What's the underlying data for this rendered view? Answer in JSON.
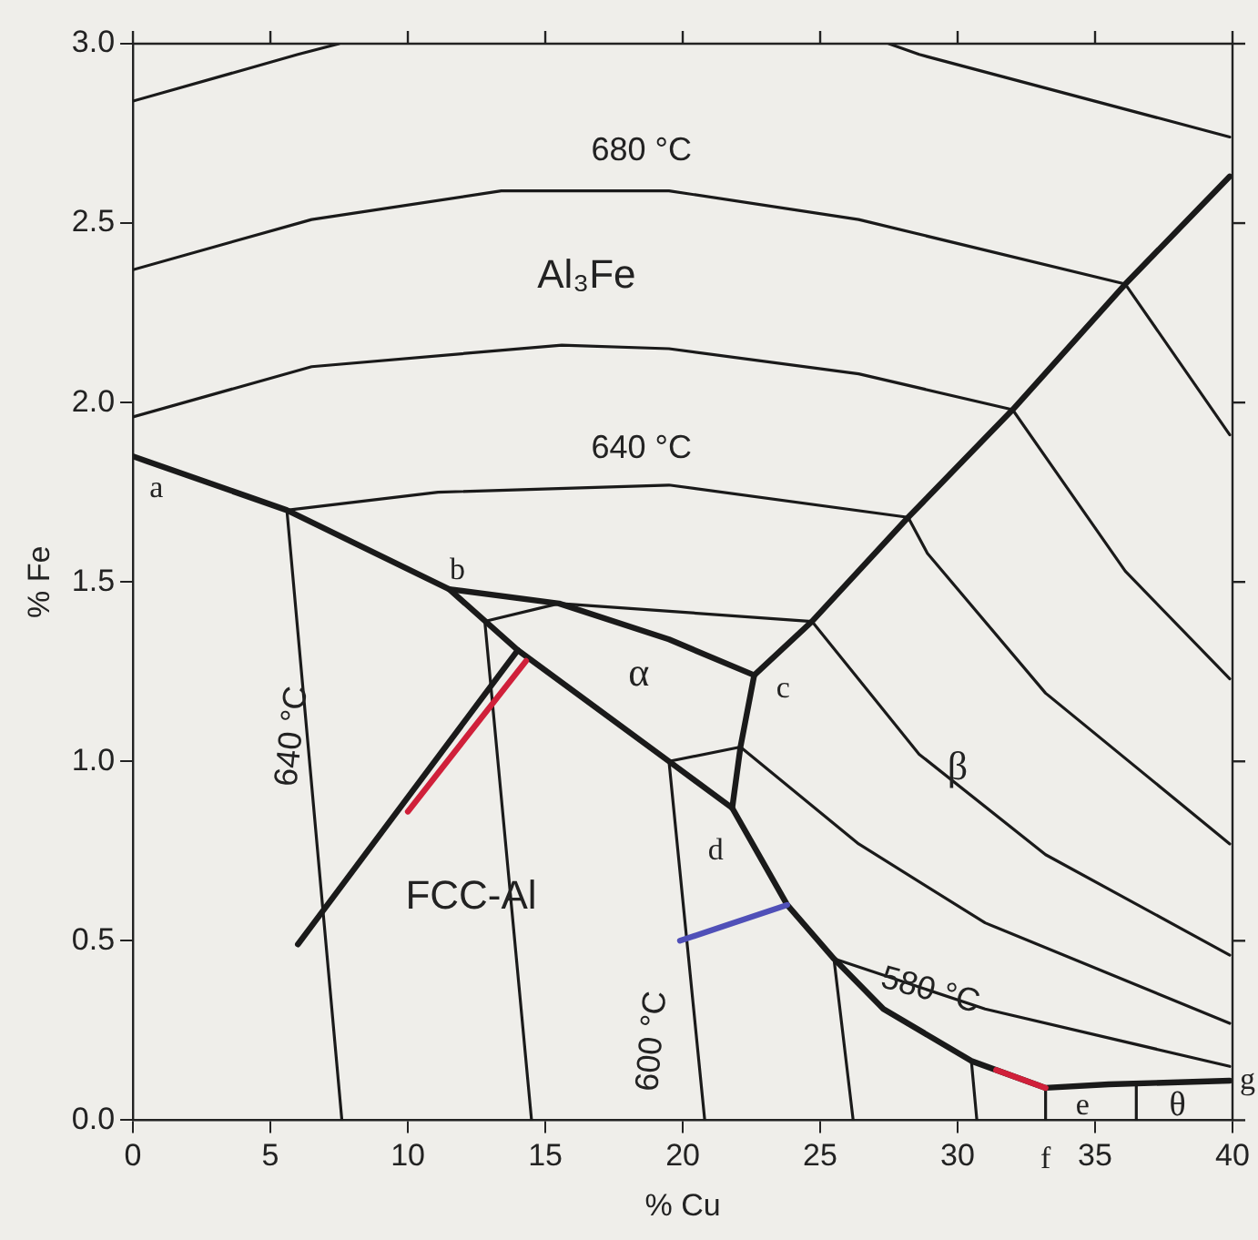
{
  "chart_data": {
    "type": "line",
    "xlabel": "% Cu",
    "ylabel": "% Fe",
    "xlim": [
      0,
      40
    ],
    "ylim": [
      0,
      3
    ],
    "xticks": [
      0,
      5,
      10,
      15,
      20,
      25,
      30,
      35,
      40
    ],
    "yticks": [
      {
        "value": 0,
        "label": "0.0"
      },
      {
        "value": 0.5,
        "label": "0.5"
      },
      {
        "value": 1,
        "label": "1.0"
      },
      {
        "value": 1.5,
        "label": "1.5"
      },
      {
        "value": 2,
        "label": "2.0"
      },
      {
        "value": 2.5,
        "label": "2.5"
      },
      {
        "value": 3,
        "label": "3.0"
      }
    ],
    "grid": false,
    "legend": false,
    "marker": "none",
    "line_style": "solid",
    "series": [
      {
        "color": "#1a1a1a",
        "x": [
          0,
          5.6,
          11.5,
          14.0,
          19.5,
          21.8,
          23.8,
          25.5,
          27.3,
          30.5,
          33.2,
          35.5,
          39.9
        ],
        "values": [
          1.85,
          1.7,
          1.48,
          1.31,
          1.0,
          0.87,
          0.6,
          0.45,
          0.31,
          0.165,
          0.09,
          0.1,
          0.11
        ]
      },
      {
        "type": "line",
        "color": "#1a1a1a",
        "x": [
          11.5,
          15.5,
          19.5,
          22.6
        ],
        "values": [
          1.48,
          1.44,
          1.34,
          1.24
        ]
      },
      {
        "type": "line",
        "color": "#1a1a1a",
        "x": [
          22.6,
          24.7,
          28.2,
          32.0,
          36.1,
          39.9
        ],
        "values": [
          1.24,
          1.39,
          1.68,
          1.98,
          2.33,
          2.63
        ]
      },
      {
        "type": "line",
        "color": "#1a1a1a",
        "x": [
          22.6,
          22.1,
          21.8
        ],
        "values": [
          1.24,
          1.04,
          0.87
        ]
      },
      {
        "type": "line",
        "color": "#1a1a1a",
        "x": [
          6.0,
          14.0
        ],
        "values": [
          0.49,
          1.31
        ]
      },
      {
        "type": "line",
        "color": "#d0203a",
        "x": [
          10.0,
          14.3
        ],
        "values": [
          0.86,
          1.28
        ]
      },
      {
        "type": "line",
        "color": "#d0203a",
        "x": [
          31.4,
          33.2
        ],
        "values": [
          0.14,
          0.09
        ]
      },
      {
        "type": "line",
        "color": "#5050b8",
        "x": [
          19.9,
          23.8
        ],
        "values": [
          0.5,
          0.6
        ]
      },
      {
        "type": "line",
        "color": "#1a1a1a",
        "x": [
          0,
          6.0,
          7.5
        ],
        "values": [
          2.84,
          2.97,
          3.0
        ]
      },
      {
        "type": "line",
        "color": "#1a1a1a",
        "x": [
          27.5,
          28.6,
          39.9
        ],
        "values": [
          3.0,
          2.97,
          2.74
        ]
      },
      {
        "type": "line",
        "color": "#1a1a1a",
        "x": [
          0,
          6.5,
          13.4,
          19.5,
          26.4,
          36.1
        ],
        "values": [
          2.37,
          2.51,
          2.59,
          2.59,
          2.51,
          2.33
        ]
      },
      {
        "type": "line",
        "color": "#1a1a1a",
        "x": [
          0,
          6.5,
          15.6,
          19.5,
          26.4,
          32.0
        ],
        "values": [
          1.96,
          2.1,
          2.16,
          2.15,
          2.08,
          1.98
        ]
      },
      {
        "type": "line",
        "color": "#1a1a1a",
        "x": [
          5.6,
          11.1,
          19.5,
          28.2
        ],
        "values": [
          1.7,
          1.75,
          1.77,
          1.68
        ]
      },
      {
        "type": "line",
        "color": "#1a1a1a",
        "x": [
          12.8,
          15.5,
          24.7
        ],
        "values": [
          1.39,
          1.44,
          1.39
        ]
      },
      {
        "type": "line",
        "color": "#1a1a1a",
        "x": [
          19.5,
          22.1
        ],
        "values": [
          1.0,
          1.04
        ]
      },
      {
        "type": "line",
        "color": "#1a1a1a",
        "x": [
          5.6,
          7.6
        ],
        "values": [
          1.7,
          0
        ]
      },
      {
        "type": "line",
        "color": "#1a1a1a",
        "x": [
          12.8,
          14.5
        ],
        "values": [
          1.39,
          0
        ]
      },
      {
        "type": "line",
        "color": "#1a1a1a",
        "x": [
          19.5,
          20.8
        ],
        "values": [
          1.0,
          0
        ]
      },
      {
        "type": "line",
        "color": "#1a1a1a",
        "x": [
          25.5,
          26.2
        ],
        "values": [
          0.45,
          0
        ]
      },
      {
        "type": "line",
        "color": "#1a1a1a",
        "x": [
          30.5,
          30.7
        ],
        "values": [
          0.165,
          0
        ]
      },
      {
        "type": "line",
        "color": "#1a1a1a",
        "x": [
          33.2,
          33.2
        ],
        "values": [
          0.09,
          0
        ]
      },
      {
        "type": "line",
        "color": "#1a1a1a",
        "x": [
          36.5,
          36.5
        ],
        "values": [
          0.1,
          0
        ]
      },
      {
        "type": "line",
        "color": "#1a1a1a",
        "x": [
          36.1,
          39.9
        ],
        "values": [
          2.33,
          1.91
        ]
      },
      {
        "type": "line",
        "color": "#1a1a1a",
        "x": [
          32.0,
          36.1,
          39.9
        ],
        "values": [
          1.98,
          1.53,
          1.23
        ]
      },
      {
        "type": "line",
        "color": "#1a1a1a",
        "x": [
          28.2,
          28.9,
          33.2,
          39.9
        ],
        "values": [
          1.68,
          1.58,
          1.19,
          0.77
        ]
      },
      {
        "type": "line",
        "color": "#1a1a1a",
        "x": [
          24.7,
          28.6,
          33.2,
          39.9
        ],
        "values": [
          1.39,
          1.02,
          0.74,
          0.46
        ]
      },
      {
        "type": "line",
        "color": "#1a1a1a",
        "x": [
          22.1,
          26.4,
          31.0,
          39.9
        ],
        "values": [
          1.04,
          0.77,
          0.55,
          0.27
        ]
      },
      {
        "type": "line",
        "color": "#1a1a1a",
        "x": [
          25.5,
          31.0,
          39.9
        ],
        "values": [
          0.45,
          0.31,
          0.15
        ]
      }
    ],
    "annotations": [
      "a",
      "b",
      "c",
      "d",
      "e",
      "f",
      "g",
      "θ",
      "α",
      "β",
      "Al₃Fe",
      "FCC-Al",
      "680 °C",
      "640 °C",
      "640 °C",
      "600 °C",
      "580 °C"
    ]
  }
}
